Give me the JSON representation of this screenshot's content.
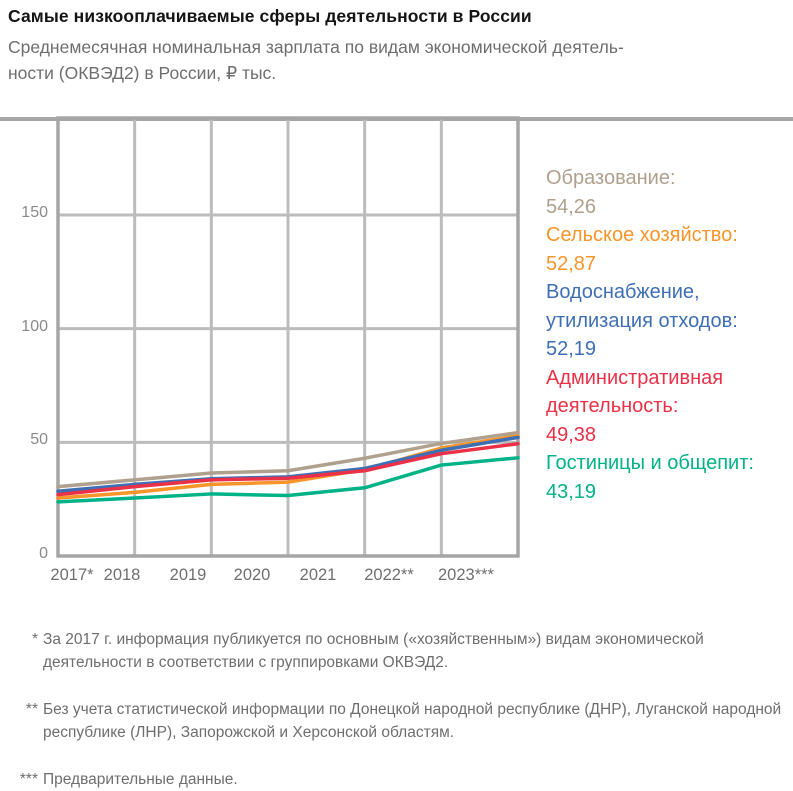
{
  "header": {
    "title": "Самые низкооплачиваемые сферы деятельности в России",
    "subtitle_lines": [
      "Среднемесячная номинальная зарплата по видам экономической деятель-",
      "ности (ОКВЭД2) в России, ₽ тыс."
    ]
  },
  "chart_data": {
    "type": "line",
    "title": "Самые низкооплачиваемые сферы деятельности в России",
    "xlabel": "",
    "ylabel": "₽ тыс.",
    "categories": [
      "2017*",
      "2018",
      "2019",
      "2020",
      "2021",
      "2022**",
      "2023***"
    ],
    "series": [
      {
        "name": "Образование",
        "color": "#b0a08e",
        "values": [
          30.5,
          33.5,
          36.5,
          37.5,
          43.0,
          49.5,
          54.26
        ]
      },
      {
        "name": "Сельское хозяйство",
        "color": "#f7952a",
        "values": [
          25.5,
          28.0,
          31.5,
          32.5,
          38.0,
          47.5,
          52.87
        ]
      },
      {
        "name": "Водоснабжение, утилизация отходов",
        "color": "#3e6fb4",
        "values": [
          28.5,
          31.5,
          34.0,
          34.8,
          38.5,
          46.5,
          52.19
        ]
      },
      {
        "name": "Административная деятельность",
        "color": "#ea3147",
        "values": [
          27.0,
          30.5,
          33.5,
          34.2,
          37.5,
          45.0,
          49.38
        ]
      },
      {
        "name": "Гостиницы и общепит",
        "color": "#00b287",
        "values": [
          23.8,
          25.5,
          27.3,
          26.6,
          30.0,
          40.0,
          43.19
        ]
      }
    ],
    "ylim": [
      0,
      190
    ],
    "yticks": [
      0,
      50,
      100,
      150
    ],
    "grid": true,
    "legend_position": "right"
  },
  "legend": {
    "items": [
      {
        "label": "Образование:",
        "value": "54,26",
        "color": "#b0a08e"
      },
      {
        "label": "Сельское хозяйство:",
        "value": "52,87",
        "color": "#f7952a"
      },
      {
        "label": "Водоснабжение, утилизация отходов:",
        "value": "52,19",
        "color": "#3e6fb4"
      },
      {
        "label": "Административная деятельность:",
        "value": "49,38",
        "color": "#ea3147"
      },
      {
        "label": "Гостиницы и общепит:",
        "value": "43,19",
        "color": "#00b287"
      }
    ]
  },
  "footnotes": [
    {
      "marker": "*",
      "text": "За 2017 г. информация публикуется по основным («хозяйственным») видам экономической деятельности в соответствии с группировками ОКВЭД2."
    },
    {
      "marker": "**",
      "text": "Без учета статистической информации по Донецкой народной республике (ДНР), Луганской народной республике (ЛНР), Запорожской и Херсонской областям."
    },
    {
      "marker": "***",
      "text": "Предварительные данные."
    }
  ],
  "colors": {
    "grid": "#bcbcbc",
    "frame": "#a6a6a6",
    "axis_text": "#8a8a8a",
    "title_text": "#141414",
    "subtitle_text": "#6e6e6e"
  }
}
